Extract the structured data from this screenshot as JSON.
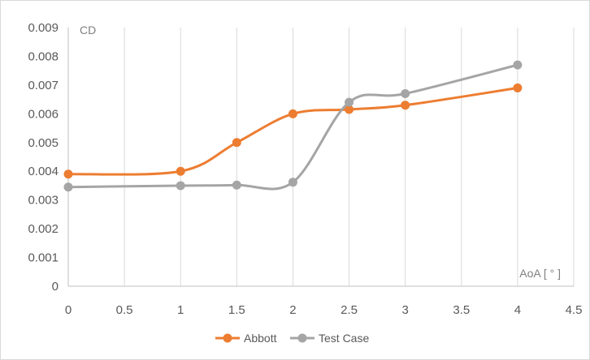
{
  "chart_data": {
    "type": "line",
    "smooth": true,
    "xlim": [
      0,
      4.5
    ],
    "ylim": [
      0,
      0.009
    ],
    "x_ticks": [
      "0",
      "0.5",
      "1",
      "1.5",
      "2",
      "2.5",
      "3",
      "3.5",
      "4",
      "4.5"
    ],
    "y_ticks": [
      "0",
      "0.001",
      "0.002",
      "0.003",
      "0.004",
      "0.005",
      "0.006",
      "0.007",
      "0.008",
      "0.009"
    ],
    "ylabel": "CD",
    "xlabel": "AoA [ ° ]",
    "grid": "vertical",
    "legend_position": "bottom",
    "series": [
      {
        "name": "Abbott",
        "color": "#ed7d31",
        "x": [
          0,
          1,
          1.5,
          2,
          2.5,
          3,
          4
        ],
        "values": [
          0.0039,
          0.004,
          0.005,
          0.006,
          0.00615,
          0.0063,
          0.0069
        ]
      },
      {
        "name": "Test Case",
        "color": "#a5a5a5",
        "x": [
          0,
          1,
          1.5,
          2,
          2.5,
          3,
          4
        ],
        "values": [
          0.00345,
          0.0035,
          0.00352,
          0.00362,
          0.0064,
          0.0067,
          0.0077
        ]
      }
    ]
  }
}
